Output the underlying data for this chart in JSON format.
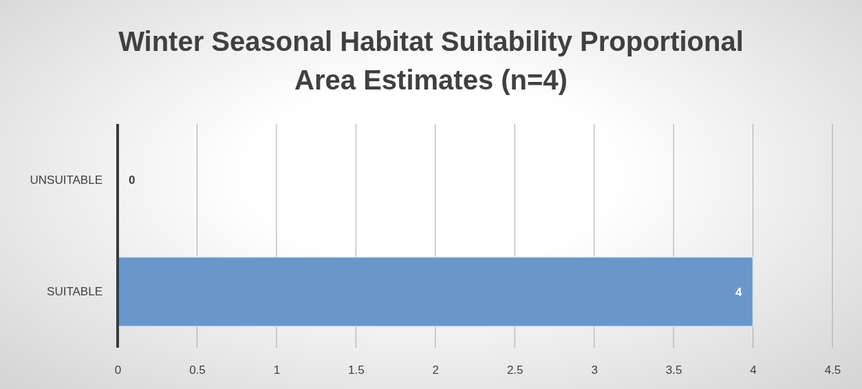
{
  "chart_data": {
    "type": "bar",
    "orientation": "horizontal",
    "title": "Winter Seasonal Habitat Suitability Proportional Area Estimates (n=4)",
    "categories": [
      "UNSUITABLE",
      "SUITABLE"
    ],
    "values": [
      0,
      4
    ],
    "color": "#6a97cb",
    "xlim": [
      0,
      4.5
    ],
    "xticks": [
      0,
      0.5,
      1,
      1.5,
      2,
      2.5,
      3,
      3.5,
      4,
      4.5
    ],
    "grid": "x",
    "data_labels": true
  }
}
